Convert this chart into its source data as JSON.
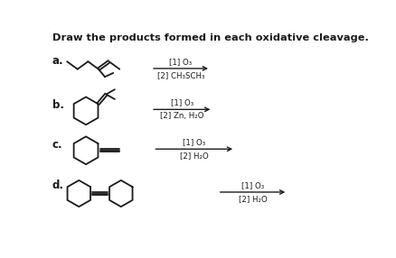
{
  "title": "Draw the products formed in each oxidative cleavage.",
  "background": "#ffffff",
  "labels": [
    "a.",
    "b.",
    "c.",
    "d."
  ],
  "reagents_a_1": "[1] O₃",
  "reagents_a_2": "[2] CH₃SCH₃",
  "reagents_b_1": "[1] O₃",
  "reagents_b_2": "[2] Zn, H₂O",
  "reagents_c_1": "[1] O₃",
  "reagents_c_2": "[2] H₂O",
  "reagents_d_1": "[1] O₃",
  "reagents_d_2": "[2] H₂O",
  "line_color": "#1a1a1a",
  "text_color": "#1a1a1a",
  "fig_w": 4.38,
  "fig_h": 2.86,
  "dpi": 100
}
